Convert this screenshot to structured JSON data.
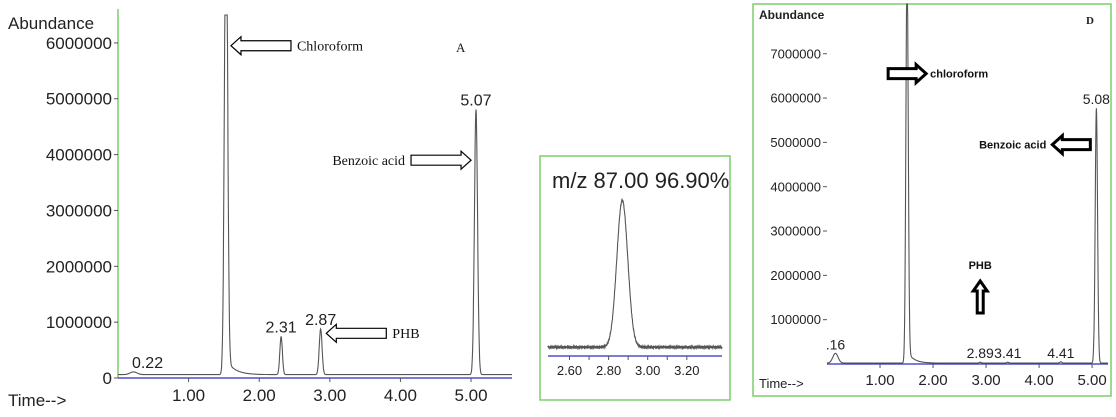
{
  "colors": {
    "trace": "#555555",
    "frame": "#7ccf6a",
    "baseline": "#2d2dbf",
    "background": "#ffffff"
  },
  "chart_data": [
    {
      "id": "A",
      "type": "line",
      "panel_label": "A",
      "ylabel": "Abundance",
      "xlabel": "Time-->",
      "xlim": [
        0.0,
        5.58
      ],
      "ylim": [
        0,
        6500000
      ],
      "x_ticks": [
        1.0,
        2.0,
        3.0,
        4.0,
        5.0
      ],
      "x_tick_labels": [
        "1.00",
        "2.00",
        "3.00",
        "4.00",
        "5.00"
      ],
      "y_ticks": [
        0,
        1000000,
        2000000,
        3000000,
        4000000,
        5000000,
        6000000
      ],
      "y_tick_labels": [
        "0",
        "1000000",
        "2000000",
        "3000000",
        "4000000",
        "5000000",
        "6000000"
      ],
      "baseline": 60000,
      "peaks": [
        {
          "rt": 0.22,
          "height": 50000,
          "width": 0.05,
          "label": "0.22"
        },
        {
          "rt": 1.53,
          "height": 9000000,
          "width": 0.022,
          "tail": true
        },
        {
          "rt": 2.31,
          "height": 680000,
          "width": 0.018,
          "label": "2.31"
        },
        {
          "rt": 2.87,
          "height": 820000,
          "width": 0.02,
          "label": "2.87"
        },
        {
          "rt": 5.07,
          "height": 4750000,
          "width": 0.022,
          "label": "5.07"
        }
      ],
      "annotations": [
        {
          "text": "Chloroform",
          "arrow_direction": "left",
          "at": [
            1.6,
            5950000
          ],
          "text_at": [
            2.6,
            5950000
          ]
        },
        {
          "text": "Benzoic acid",
          "arrow_direction": "right",
          "at": [
            5.0,
            3900000
          ],
          "text_at": [
            4.0,
            3900000
          ]
        },
        {
          "text": "PHB",
          "arrow_direction": "left",
          "at": [
            2.95,
            800000
          ],
          "text_at": [
            3.7,
            800000
          ]
        }
      ]
    },
    {
      "id": "inset",
      "type": "line",
      "title": "m/z  87.00   96.90%",
      "xlim": [
        2.49,
        3.38
      ],
      "ylim": [
        0,
        1.15
      ],
      "x_ticks": [
        2.6,
        2.7,
        2.8,
        2.9,
        3.0,
        3.1,
        3.2
      ],
      "x_tick_labels": [
        "2.60",
        "",
        "2.80",
        "",
        "3.00",
        "",
        "3.20"
      ],
      "peaks": [
        {
          "rt": 2.87,
          "height": 1.0,
          "width": 0.028
        }
      ],
      "baseline": 0.06
    },
    {
      "id": "D",
      "type": "line",
      "panel_label": "D",
      "ylabel": "Abundance",
      "xlabel": "Time-->",
      "xlim": [
        0.0,
        5.3
      ],
      "ylim": [
        0,
        7400000
      ],
      "x_ticks": [
        1.0,
        2.0,
        3.0,
        4.0,
        5.0
      ],
      "x_tick_labels": [
        "1.00",
        "2.00",
        "3.00",
        "4.00",
        "5.00"
      ],
      "y_ticks": [
        1000000,
        2000000,
        3000000,
        4000000,
        5000000,
        6000000,
        7000000
      ],
      "y_tick_labels": [
        "1000000",
        "2000000",
        "3000000",
        "4000000",
        "5000000",
        "6000000",
        "7000000"
      ],
      "baseline": 20000,
      "peaks": [
        {
          "rt": 0.16,
          "height": 220000,
          "width": 0.05,
          "label": ".16"
        },
        {
          "rt": 1.51,
          "height": 9000000,
          "width": 0.022,
          "tail": true
        },
        {
          "rt": 2.89,
          "height": 20000,
          "width": 0.02,
          "label": "2.89"
        },
        {
          "rt": 3.41,
          "height": 20000,
          "width": 0.02,
          "label": "3.41"
        },
        {
          "rt": 4.41,
          "height": 30000,
          "width": 0.02,
          "label": "4.41"
        },
        {
          "rt": 5.08,
          "height": 5750000,
          "width": 0.022,
          "label": "5.08"
        }
      ],
      "annotations": [
        {
          "text": "chloroform",
          "arrow_direction": "right",
          "at": [
            1.87,
            6550000
          ],
          "text_at": [
            2.0,
            6550000
          ]
        },
        {
          "text": "Benzoic acid",
          "arrow_direction": "left",
          "at": [
            4.25,
            4950000
          ],
          "text_at": [
            3.0,
            4950000
          ]
        },
        {
          "text": "PHB",
          "arrow_direction": "up",
          "at": [
            2.89,
            1150000
          ],
          "text_at": [
            2.89,
            1900000
          ]
        }
      ]
    }
  ]
}
